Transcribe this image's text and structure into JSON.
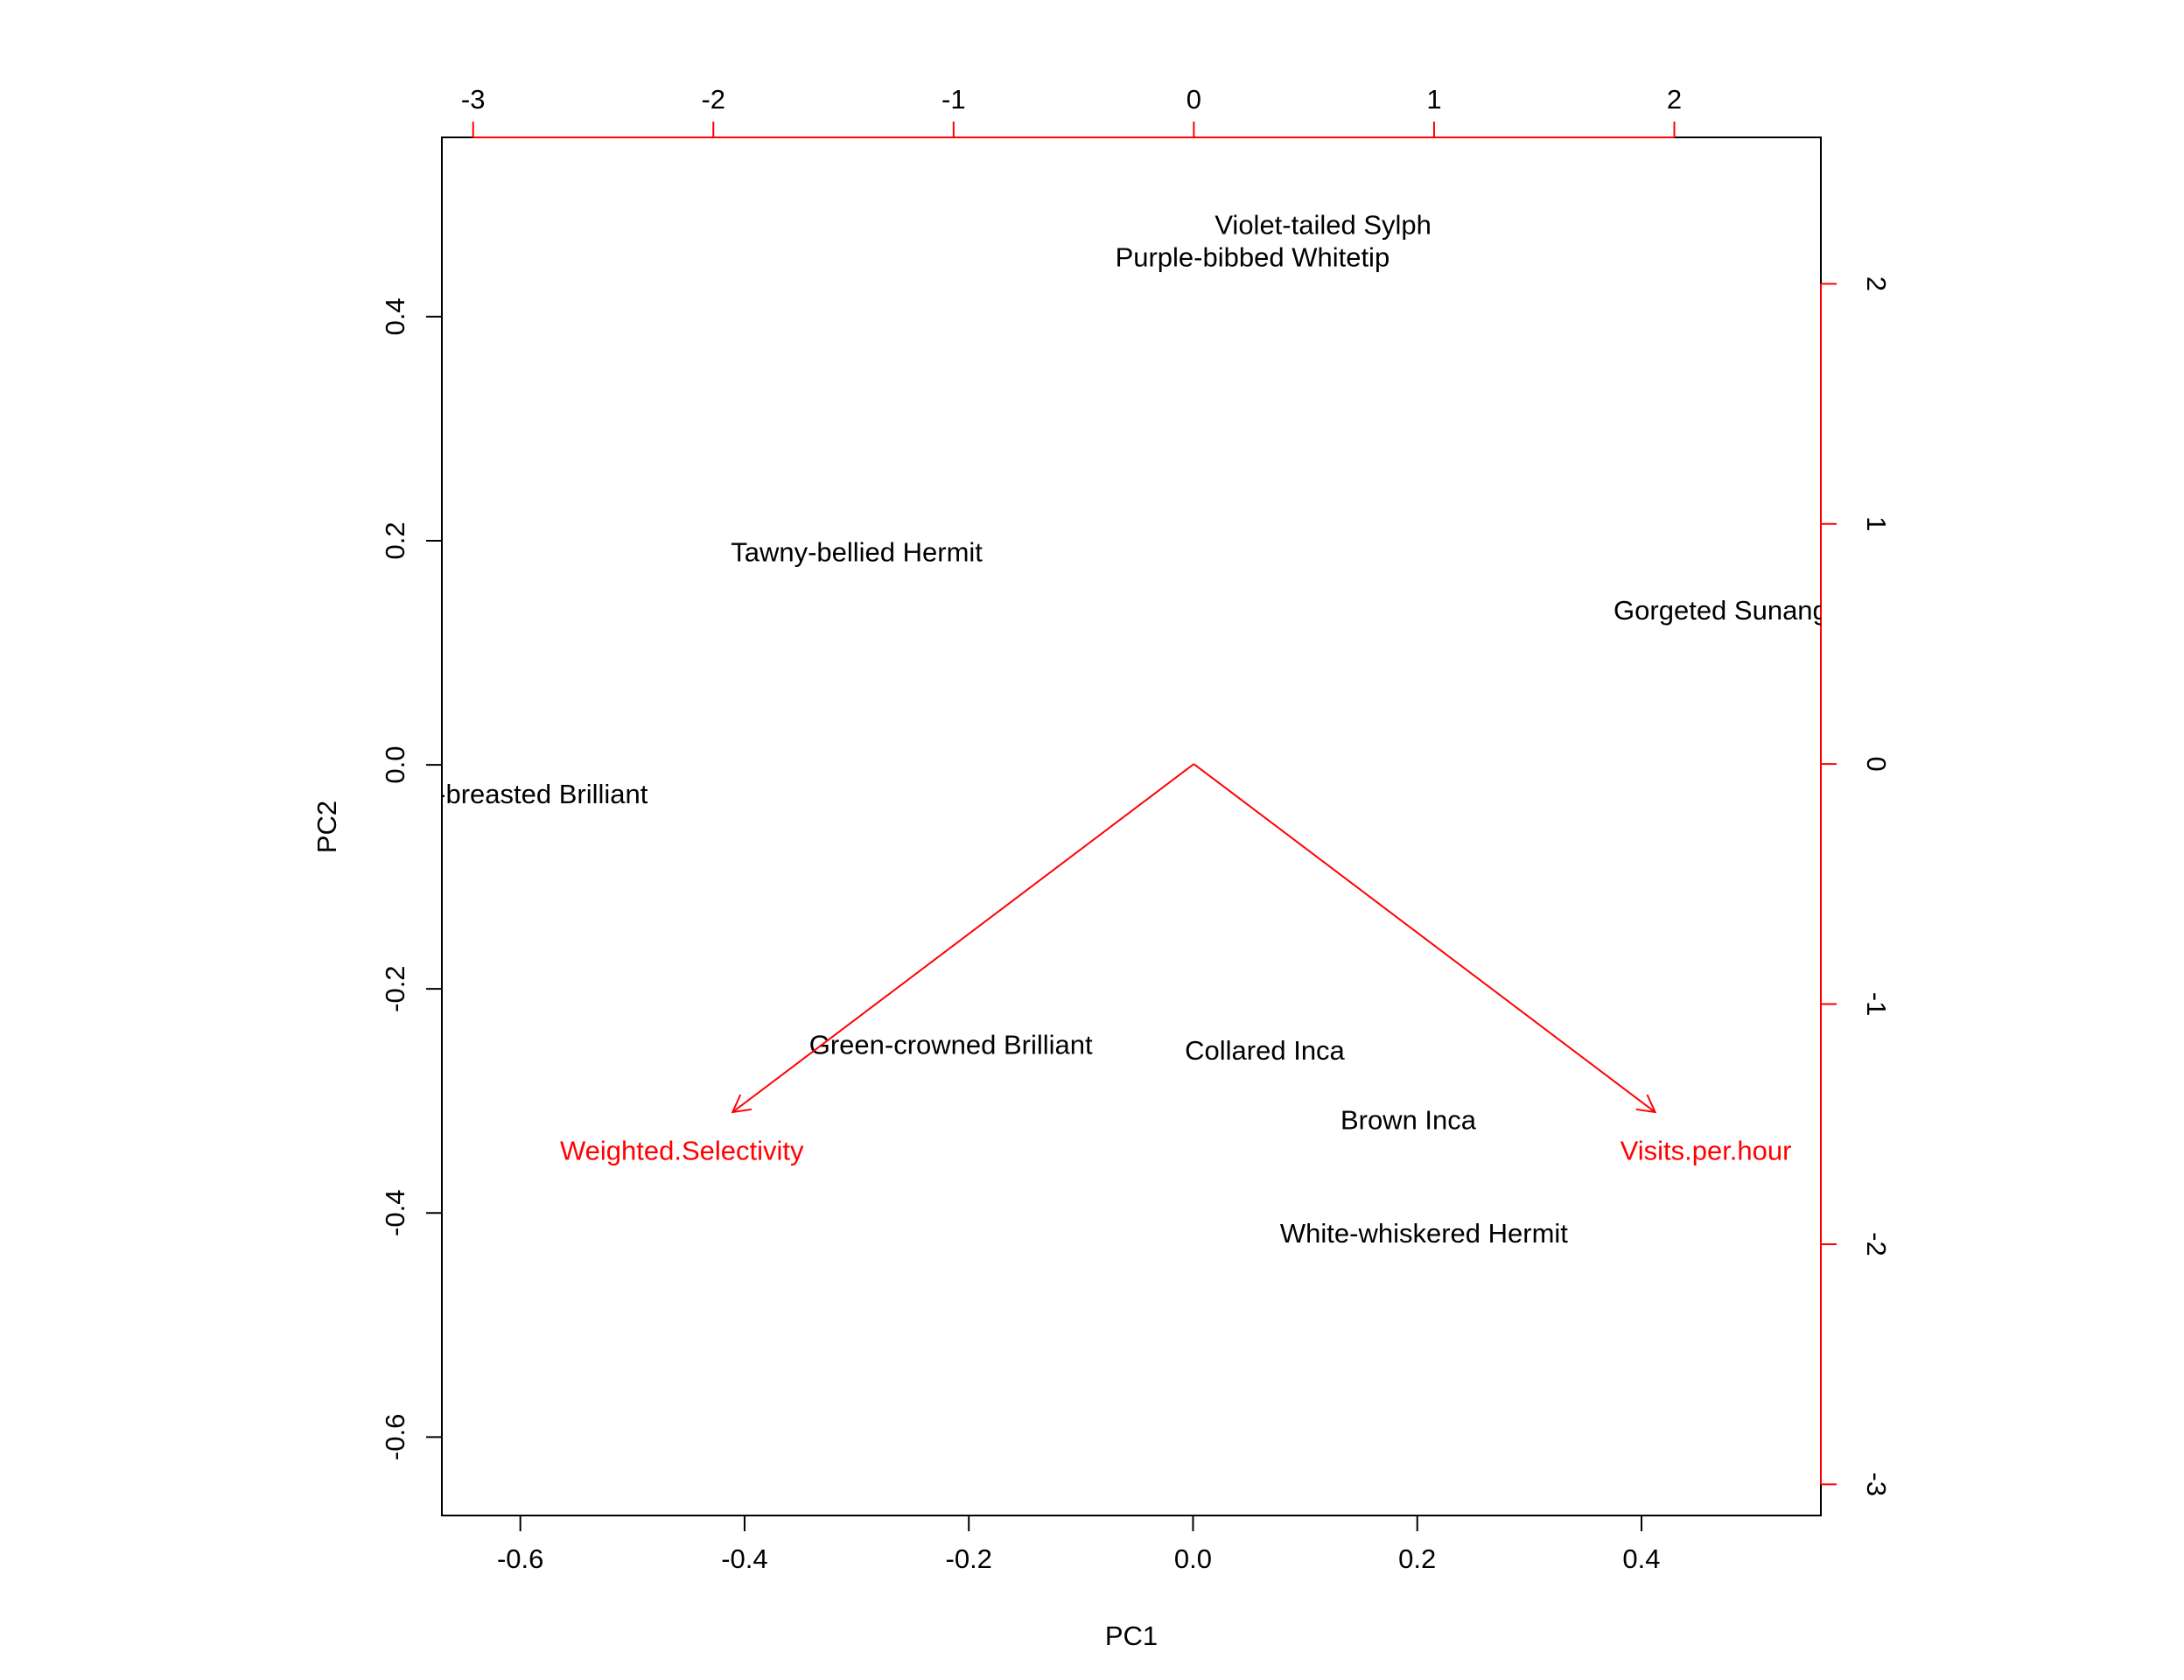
{
  "chart_data": {
    "type": "scatter",
    "subtype": "biplot",
    "xlabel": "PC1",
    "ylabel": "PC2",
    "xlim": [
      -0.67,
      0.56
    ],
    "ylim": [
      -0.67,
      0.56
    ],
    "x_ticks": [
      "-0.6",
      "-0.4",
      "-0.2",
      "0.0",
      "0.2",
      "0.4"
    ],
    "x_tick_values": [
      -0.6,
      -0.4,
      -0.2,
      0.0,
      0.2,
      0.4
    ],
    "y_ticks": [
      "-0.6",
      "-0.4",
      "-0.2",
      "0.0",
      "0.2",
      "0.4"
    ],
    "y_tick_values": [
      -0.6,
      -0.4,
      -0.2,
      0.0,
      0.2,
      0.4
    ],
    "top_ticks": [
      "-3",
      "-2",
      "-1",
      "0",
      "1",
      "2"
    ],
    "top_tick_values": [
      -3,
      -2,
      -1,
      0,
      1,
      2
    ],
    "right_ticks": [
      "-3",
      "-2",
      "-1",
      "0",
      "1",
      "2"
    ],
    "right_tick_values": [
      -3,
      -2,
      -1,
      0,
      1,
      2
    ],
    "secondary_lim": [
      -3.13,
      2.61
    ],
    "grid": false,
    "observations": [
      {
        "label": "Violet-tailed Sylph",
        "x": 0.116,
        "y": 0.482
      },
      {
        "label": "Purple-bibbed Whitetip",
        "x": 0.053,
        "y": 0.453
      },
      {
        "label": "Tawny-bellied Hermit",
        "x": -0.3,
        "y": 0.19
      },
      {
        "label": "Gorgeted Sunangel",
        "x": 0.48,
        "y": 0.138
      },
      {
        "label": "Fawn-breasted Brilliant",
        "x": -0.61,
        "y": -0.026
      },
      {
        "label": "Green-crowned Brilliant",
        "x": -0.216,
        "y": -0.25
      },
      {
        "label": "Collared Inca",
        "x": 0.064,
        "y": -0.255
      },
      {
        "label": "Brown Inca",
        "x": 0.192,
        "y": -0.317
      },
      {
        "label": "White-whiskered Hermit",
        "x": 0.206,
        "y": -0.418
      }
    ],
    "variables": [
      {
        "label": "Weighted.Selectivity",
        "x": -1.92,
        "y": -1.45
      },
      {
        "label": "Visits.per.hour",
        "x": 1.92,
        "y": -1.45
      }
    ],
    "colors": {
      "observations": "#000000",
      "variables": "#ff0000",
      "axes": "#000000",
      "secondary_ticks": "#ff0000"
    }
  }
}
